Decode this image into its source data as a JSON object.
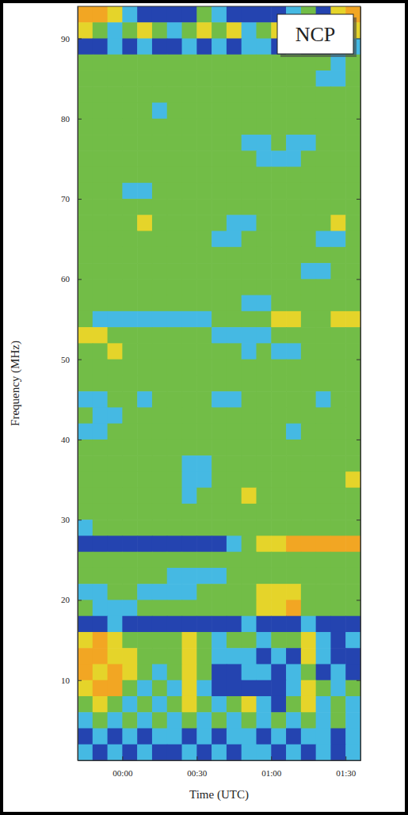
{
  "chart_data": {
    "type": "heatmap",
    "x_label": "Time (UTC)",
    "y_label": "Frequency (MHz)",
    "annotations": [
      "NCP"
    ],
    "xlim": [
      -18,
      96
    ],
    "ylim": [
      0,
      94
    ],
    "xticks": [
      {
        "value": 0,
        "label": "00:00"
      },
      {
        "value": 30,
        "label": "00:30"
      },
      {
        "value": 60,
        "label": "01:00"
      },
      {
        "value": 90,
        "label": "01:30"
      }
    ],
    "yticks": [
      10,
      20,
      30,
      40,
      50,
      60,
      70,
      80,
      90
    ],
    "zlim": [
      0,
      4
    ],
    "x": [
      -15,
      -9,
      -3,
      3,
      9,
      15,
      21,
      27,
      33,
      39,
      45,
      51,
      57,
      63,
      69,
      75,
      81,
      87,
      93
    ],
    "y": [
      93,
      91,
      89,
      87,
      85,
      83,
      81,
      79,
      77,
      75,
      73,
      71,
      69,
      67,
      65,
      63,
      61,
      59,
      57,
      55,
      53,
      51,
      49,
      47,
      45,
      43,
      41,
      39,
      37,
      35,
      33,
      31,
      29,
      27,
      25,
      23,
      21,
      19,
      17,
      15,
      13,
      11,
      9,
      7,
      5,
      3,
      1
    ],
    "z": [
      [
        4,
        4,
        3,
        1,
        0,
        0,
        0,
        0,
        2,
        1,
        0,
        0,
        0,
        0,
        1,
        2,
        0,
        3,
        4
      ],
      [
        3,
        2,
        1,
        2,
        3,
        2,
        1,
        2,
        3,
        2,
        3,
        1,
        2,
        3,
        2,
        1,
        2,
        0,
        3
      ],
      [
        0,
        0,
        1,
        0,
        1,
        0,
        0,
        1,
        0,
        1,
        0,
        1,
        1,
        0,
        1,
        0,
        0,
        1,
        1
      ],
      [
        2,
        2,
        2,
        2,
        2,
        2,
        2,
        2,
        2,
        2,
        2,
        2,
        2,
        2,
        2,
        2,
        2,
        1,
        2
      ],
      [
        2,
        2,
        2,
        2,
        2,
        2,
        2,
        2,
        2,
        2,
        2,
        2,
        2,
        2,
        2,
        2,
        1,
        1,
        2
      ],
      [
        2,
        2,
        2,
        2,
        2,
        2,
        2,
        2,
        2,
        2,
        2,
        2,
        2,
        2,
        2,
        2,
        2,
        2,
        2
      ],
      [
        2,
        2,
        2,
        2,
        2,
        1,
        2,
        2,
        2,
        2,
        2,
        2,
        2,
        2,
        2,
        2,
        2,
        2,
        2
      ],
      [
        2,
        2,
        2,
        2,
        2,
        2,
        2,
        2,
        2,
        2,
        2,
        2,
        2,
        2,
        2,
        2,
        2,
        2,
        2
      ],
      [
        2,
        2,
        2,
        2,
        2,
        2,
        2,
        2,
        2,
        2,
        2,
        1,
        1,
        2,
        1,
        1,
        2,
        2,
        2
      ],
      [
        2,
        2,
        2,
        2,
        2,
        2,
        2,
        2,
        2,
        2,
        2,
        2,
        1,
        1,
        1,
        2,
        2,
        2,
        2
      ],
      [
        2,
        2,
        2,
        2,
        2,
        2,
        2,
        2,
        2,
        2,
        2,
        2,
        2,
        2,
        2,
        2,
        2,
        2,
        2
      ],
      [
        2,
        2,
        2,
        1,
        1,
        2,
        2,
        2,
        2,
        2,
        2,
        2,
        2,
        2,
        2,
        2,
        2,
        2,
        2
      ],
      [
        2,
        2,
        2,
        2,
        2,
        2,
        2,
        2,
        2,
        2,
        2,
        2,
        2,
        2,
        2,
        2,
        2,
        2,
        2
      ],
      [
        2,
        2,
        2,
        2,
        3,
        2,
        2,
        2,
        2,
        2,
        1,
        1,
        2,
        2,
        2,
        2,
        2,
        3,
        2
      ],
      [
        2,
        2,
        2,
        2,
        2,
        2,
        2,
        2,
        2,
        1,
        1,
        2,
        2,
        2,
        2,
        2,
        1,
        1,
        2
      ],
      [
        2,
        2,
        2,
        2,
        2,
        2,
        2,
        2,
        2,
        2,
        2,
        2,
        2,
        2,
        2,
        2,
        2,
        2,
        2
      ],
      [
        2,
        2,
        2,
        2,
        2,
        2,
        2,
        2,
        2,
        2,
        2,
        2,
        2,
        2,
        2,
        1,
        1,
        2,
        2
      ],
      [
        2,
        2,
        2,
        2,
        2,
        2,
        2,
        2,
        2,
        2,
        2,
        2,
        2,
        2,
        2,
        2,
        2,
        2,
        2
      ],
      [
        2,
        2,
        2,
        2,
        2,
        2,
        2,
        2,
        2,
        2,
        2,
        1,
        1,
        2,
        2,
        2,
        2,
        2,
        2
      ],
      [
        2,
        1,
        1,
        1,
        1,
        1,
        1,
        1,
        1,
        2,
        2,
        2,
        2,
        3,
        3,
        2,
        2,
        3,
        3
      ],
      [
        3,
        3,
        2,
        2,
        2,
        2,
        2,
        2,
        2,
        1,
        1,
        1,
        1,
        2,
        2,
        2,
        2,
        2,
        2
      ],
      [
        2,
        2,
        3,
        2,
        2,
        2,
        2,
        2,
        2,
        2,
        2,
        1,
        2,
        1,
        1,
        2,
        2,
        2,
        2
      ],
      [
        2,
        2,
        2,
        2,
        2,
        2,
        2,
        2,
        2,
        2,
        2,
        2,
        2,
        2,
        2,
        2,
        2,
        2,
        2
      ],
      [
        2,
        2,
        2,
        2,
        2,
        2,
        2,
        2,
        2,
        2,
        2,
        2,
        2,
        2,
        2,
        2,
        2,
        2,
        2
      ],
      [
        1,
        1,
        2,
        2,
        1,
        2,
        2,
        2,
        2,
        1,
        1,
        2,
        2,
        2,
        2,
        2,
        1,
        2,
        2
      ],
      [
        2,
        1,
        1,
        2,
        2,
        2,
        2,
        2,
        2,
        2,
        2,
        2,
        2,
        2,
        2,
        2,
        2,
        2,
        2
      ],
      [
        1,
        1,
        2,
        2,
        2,
        2,
        2,
        2,
        2,
        2,
        2,
        2,
        2,
        2,
        1,
        2,
        2,
        2,
        2
      ],
      [
        2,
        2,
        2,
        2,
        2,
        2,
        2,
        2,
        2,
        2,
        2,
        2,
        2,
        2,
        2,
        2,
        2,
        2,
        2
      ],
      [
        2,
        2,
        2,
        2,
        2,
        2,
        2,
        1,
        1,
        2,
        2,
        2,
        2,
        2,
        2,
        2,
        2,
        2,
        2
      ],
      [
        2,
        2,
        2,
        2,
        2,
        2,
        2,
        1,
        1,
        2,
        2,
        2,
        2,
        2,
        2,
        2,
        2,
        2,
        3
      ],
      [
        2,
        2,
        2,
        2,
        2,
        2,
        2,
        1,
        2,
        2,
        2,
        3,
        2,
        2,
        2,
        2,
        2,
        2,
        2
      ],
      [
        2,
        2,
        2,
        2,
        2,
        2,
        2,
        2,
        2,
        2,
        2,
        2,
        2,
        2,
        2,
        2,
        2,
        2,
        2
      ],
      [
        1,
        2,
        2,
        2,
        2,
        2,
        2,
        2,
        2,
        2,
        2,
        2,
        2,
        2,
        2,
        2,
        2,
        2,
        2
      ],
      [
        0,
        0,
        0,
        0,
        0,
        0,
        0,
        0,
        0,
        0,
        1,
        2,
        3,
        3,
        4,
        4,
        4,
        4,
        4
      ],
      [
        2,
        2,
        2,
        2,
        2,
        2,
        2,
        2,
        2,
        2,
        2,
        2,
        2,
        2,
        2,
        2,
        2,
        2,
        2
      ],
      [
        2,
        2,
        2,
        2,
        2,
        2,
        1,
        1,
        1,
        1,
        2,
        2,
        2,
        2,
        2,
        2,
        2,
        2,
        2
      ],
      [
        1,
        1,
        2,
        2,
        1,
        1,
        1,
        1,
        2,
        2,
        2,
        2,
        3,
        3,
        3,
        2,
        2,
        2,
        2
      ],
      [
        2,
        1,
        1,
        1,
        2,
        2,
        2,
        2,
        2,
        2,
        2,
        2,
        3,
        3,
        4,
        2,
        2,
        2,
        2
      ],
      [
        0,
        0,
        1,
        0,
        0,
        0,
        0,
        0,
        0,
        0,
        0,
        1,
        0,
        0,
        0,
        1,
        0,
        0,
        0
      ],
      [
        3,
        4,
        3,
        2,
        2,
        2,
        2,
        3,
        2,
        1,
        2,
        2,
        1,
        2,
        2,
        3,
        1,
        0,
        1
      ],
      [
        4,
        4,
        3,
        3,
        2,
        2,
        2,
        3,
        2,
        1,
        1,
        1,
        0,
        1,
        0,
        3,
        1,
        0,
        0
      ],
      [
        4,
        3,
        4,
        3,
        2,
        1,
        2,
        3,
        2,
        0,
        0,
        1,
        1,
        0,
        1,
        2,
        0,
        1,
        0
      ],
      [
        3,
        4,
        4,
        2,
        1,
        2,
        1,
        3,
        1,
        0,
        0,
        0,
        0,
        0,
        1,
        3,
        2,
        1,
        2
      ],
      [
        2,
        3,
        2,
        1,
        2,
        1,
        2,
        3,
        2,
        1,
        2,
        3,
        1,
        0,
        2,
        3,
        1,
        2,
        1
      ],
      [
        1,
        2,
        1,
        2,
        1,
        2,
        1,
        2,
        1,
        2,
        1,
        2,
        1,
        2,
        1,
        2,
        1,
        2,
        1
      ],
      [
        0,
        1,
        0,
        1,
        0,
        1,
        1,
        0,
        1,
        0,
        1,
        1,
        0,
        1,
        0,
        1,
        1,
        0,
        1
      ],
      [
        1,
        0,
        1,
        0,
        1,
        0,
        0,
        1,
        0,
        1,
        0,
        1,
        1,
        0,
        1,
        0,
        1,
        0,
        1
      ]
    ]
  }
}
